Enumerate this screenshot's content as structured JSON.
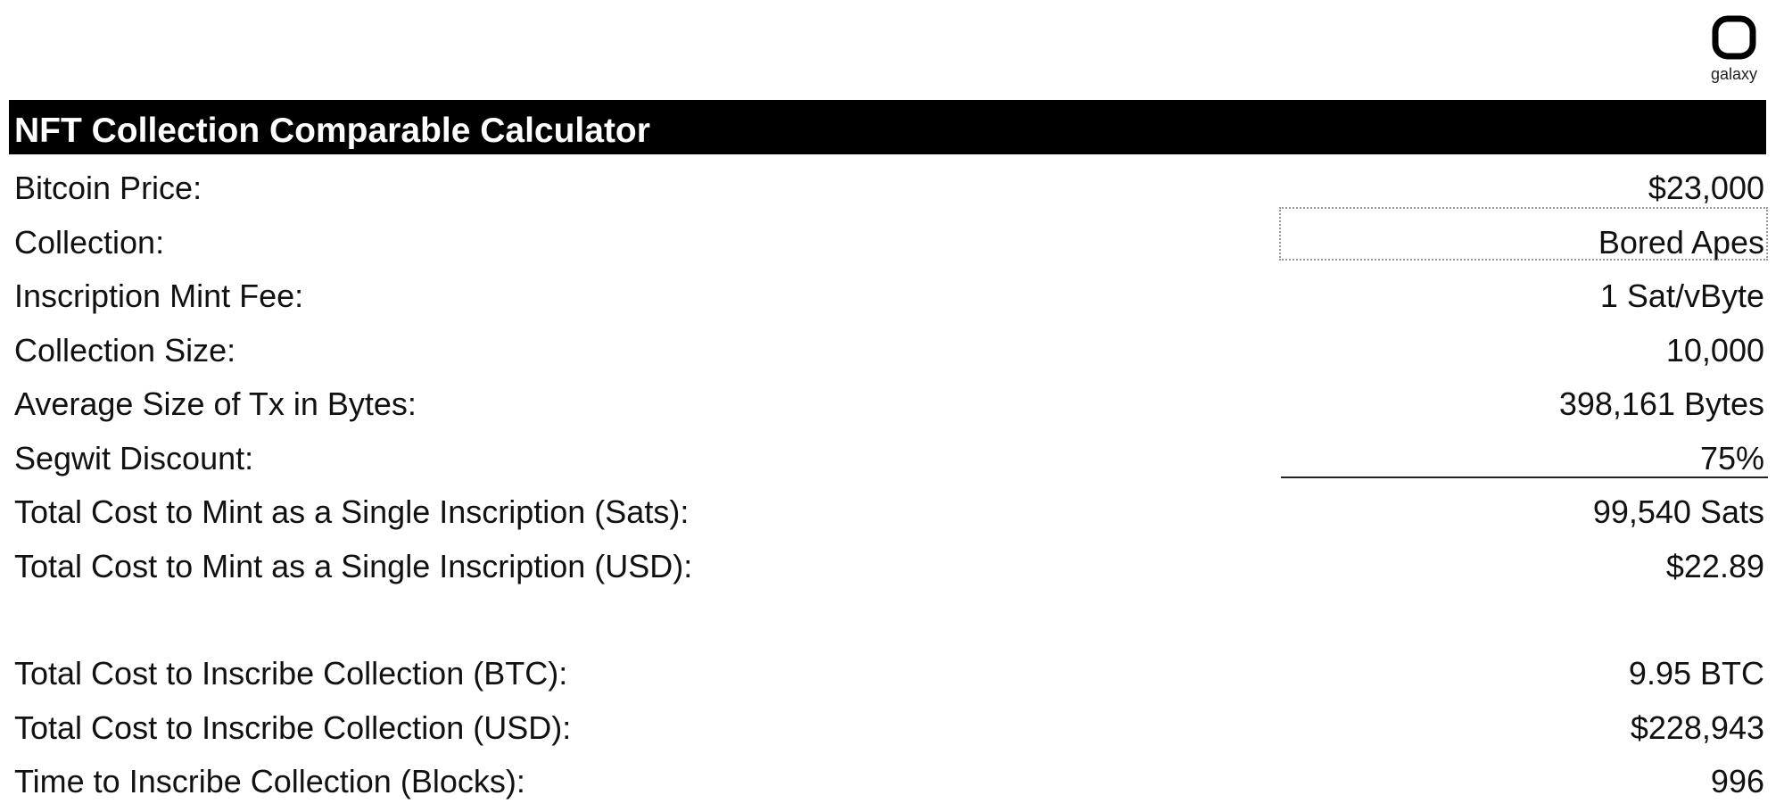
{
  "logo": {
    "text": "galaxy",
    "icon": "galaxy-logo-icon"
  },
  "title": "NFT Collection Comparable Calculator",
  "rows": [
    {
      "label": "Bitcoin Price:",
      "value": "$23,000"
    },
    {
      "label": "Collection:",
      "value": "Bored Apes"
    },
    {
      "label": "Inscription Mint Fee:",
      "value": "1 Sat/vByte"
    },
    {
      "label": "Collection Size:",
      "value": "10,000"
    },
    {
      "label": "Average Size of Tx in Bytes:",
      "value": "398,161 Bytes"
    },
    {
      "label": "Segwit Discount:",
      "value": "75%"
    },
    {
      "label": "Total Cost to Mint as a Single Inscription (Sats):",
      "value": "99,540 Sats"
    },
    {
      "label": "Total Cost to Mint as a Single Inscription (USD):",
      "value": "$22.89"
    }
  ],
  "summary_rows": [
    {
      "label": "Total Cost to Inscribe Collection (BTC):",
      "value": "9.95 BTC"
    },
    {
      "label": "Total Cost to Inscribe Collection (USD):",
      "value": "$228,943"
    },
    {
      "label": "Time to Inscribe Collection (Blocks):",
      "value": "996"
    }
  ]
}
